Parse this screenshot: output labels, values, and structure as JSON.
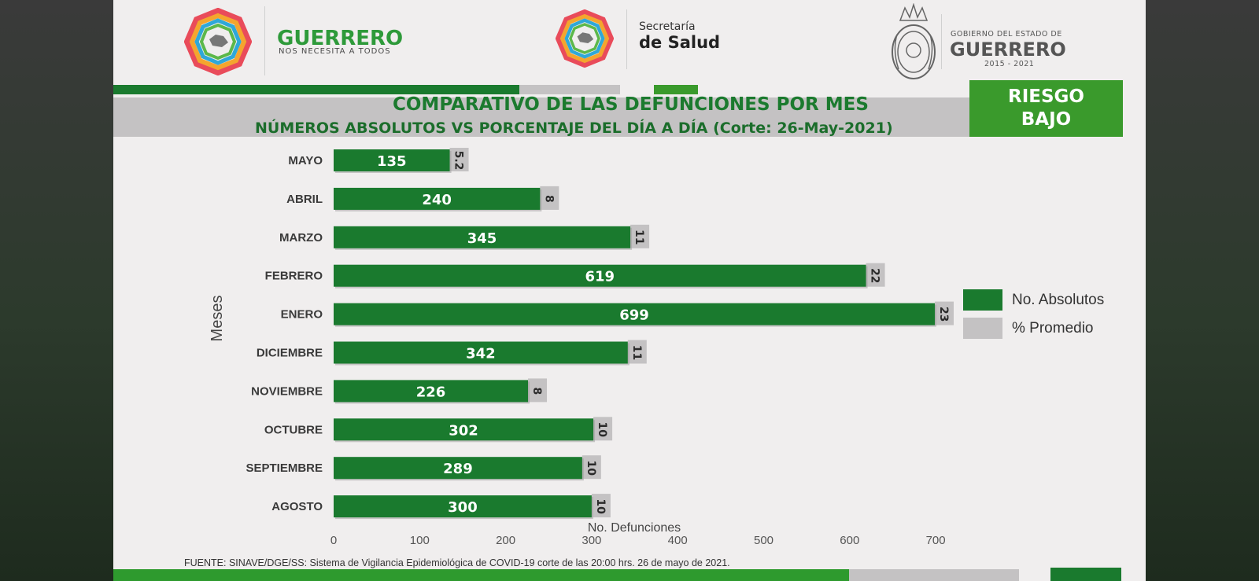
{
  "header": {
    "guerrero_title": "GUERRERO",
    "guerrero_sub": "NOS NECESITA A TODOS",
    "salud_small": "Secretaría",
    "salud_big": "de Salud",
    "gob_small": "GOBIERNO DEL ESTADO DE",
    "gob_big": "GUERRERO",
    "gob_years": "2015 - 2021"
  },
  "title": {
    "line1": "COMPARATIVO DE LAS DEFUNCIONES POR MES",
    "line2": "NÚMEROS ABSOLUTOS VS PORCENTAJE DEL DÍA A DÍA   (Corte: 26-May-2021)"
  },
  "risk": {
    "line1": "RIESGO",
    "line2": "BAJO"
  },
  "colors": {
    "green": "#1a7a2e",
    "gray": "#c4c2c3",
    "risk_green": "#3a9a2c"
  },
  "chart_data": {
    "type": "bar",
    "orientation": "horizontal",
    "categories": [
      "MAYO",
      "ABRIL",
      "MARZO",
      "FEBRERO",
      "ENERO",
      "DICIEMBRE",
      "NOVIEMBRE",
      "OCTUBRE",
      "SEPTIEMBRE",
      "AGOSTO"
    ],
    "series": [
      {
        "name": "No. Absolutos",
        "values": [
          135,
          240,
          345,
          619,
          699,
          342,
          226,
          302,
          289,
          300
        ]
      },
      {
        "name": "% Promedio",
        "values": [
          "5.2",
          "8",
          "11",
          "22",
          "23",
          "11",
          "8",
          "10",
          "10",
          "10"
        ]
      }
    ],
    "xlabel": "No. Defunciones",
    "ylabel": "Meses",
    "xlim": [
      0,
      700
    ],
    "xticks": [
      "0",
      "100",
      "200",
      "300",
      "400",
      "500",
      "600",
      "700"
    ],
    "legend_position": "right",
    "grid": false
  },
  "legend": {
    "abs_label": "No. Absolutos",
    "pct_label": "% Promedio"
  },
  "footer": {
    "source": "FUENTE: SINAVE/DGE/SS: Sistema de Vigilancia Epidemiológica de COVID-19 corte de las 20:00 hrs. 26 de mayo  de 2021."
  }
}
